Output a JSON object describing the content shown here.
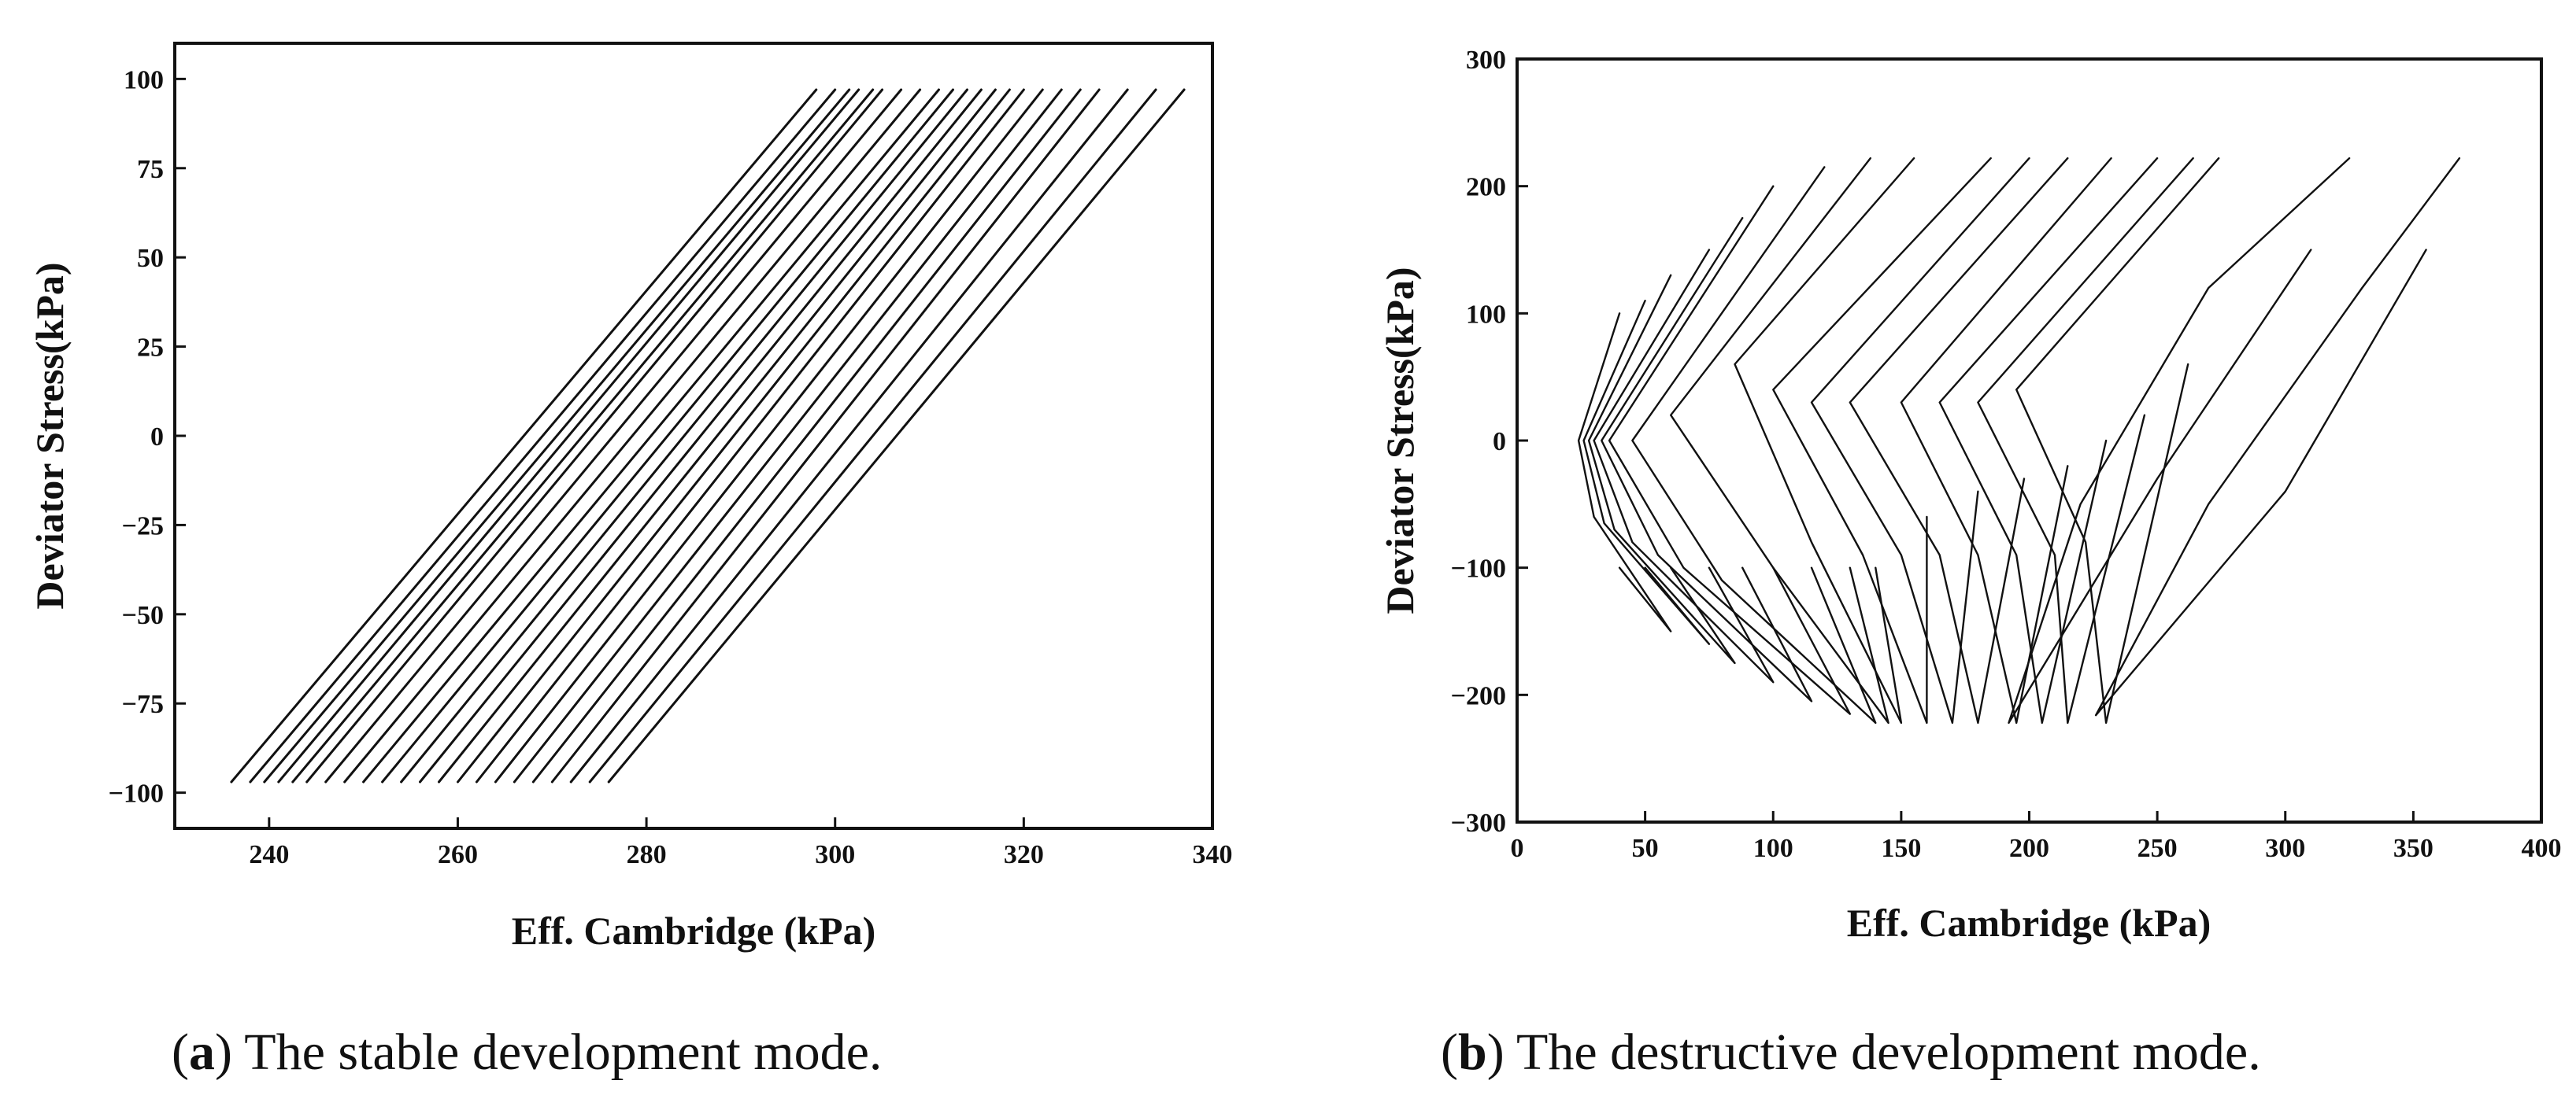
{
  "chart_data": [
    {
      "type": "line",
      "caption_letter": "a",
      "caption_text": "The stable development mode.",
      "xlabel": "Eff. Cambridge (kPa)",
      "ylabel": "Deviator Stress(kPa)",
      "xlim": [
        230,
        340
      ],
      "ylim": [
        -110,
        110
      ],
      "xticks": [
        240,
        260,
        280,
        300,
        320,
        340
      ],
      "yticks": [
        100,
        75,
        50,
        25,
        0,
        -25,
        -50,
        -75,
        -100
      ],
      "grid": false,
      "series": [
        {
          "color": "#111111",
          "x": [
            236.0,
            298.0
          ],
          "y": [
            -97,
            97
          ]
        },
        {
          "color": "#111111",
          "x": [
            238.0,
            300.0
          ],
          "y": [
            -97,
            97
          ]
        },
        {
          "color": "#111111",
          "x": [
            239.5,
            301.5
          ],
          "y": [
            -97,
            97
          ]
        },
        {
          "color": "#111111",
          "x": [
            241.0,
            302.5
          ],
          "y": [
            -97,
            97
          ]
        },
        {
          "color": "#111111",
          "x": [
            242.5,
            304.0
          ],
          "y": [
            -97,
            97
          ]
        },
        {
          "color": "#111111",
          "x": [
            244.0,
            305.0
          ],
          "y": [
            -97,
            97
          ]
        },
        {
          "color": "#111111",
          "x": [
            246.0,
            307.0
          ],
          "y": [
            -97,
            97
          ]
        },
        {
          "color": "#111111",
          "x": [
            248.0,
            309.0
          ],
          "y": [
            -97,
            97
          ]
        },
        {
          "color": "#111111",
          "x": [
            250.0,
            311.0
          ],
          "y": [
            -97,
            97
          ]
        },
        {
          "color": "#111111",
          "x": [
            252.0,
            312.5
          ],
          "y": [
            -97,
            97
          ]
        },
        {
          "color": "#111111",
          "x": [
            254.0,
            314.0
          ],
          "y": [
            -97,
            97
          ]
        },
        {
          "color": "#111111",
          "x": [
            256.0,
            315.5
          ],
          "y": [
            -97,
            97
          ]
        },
        {
          "color": "#111111",
          "x": [
            258.0,
            317.0
          ],
          "y": [
            -97,
            97
          ]
        },
        {
          "color": "#111111",
          "x": [
            260.0,
            318.5
          ],
          "y": [
            -97,
            97
          ]
        },
        {
          "color": "#111111",
          "x": [
            262.0,
            320.0
          ],
          "y": [
            -97,
            97
          ]
        },
        {
          "color": "#111111",
          "x": [
            264.0,
            322.0
          ],
          "y": [
            -97,
            97
          ]
        },
        {
          "color": "#111111",
          "x": [
            266.0,
            324.0
          ],
          "y": [
            -97,
            97
          ]
        },
        {
          "color": "#111111",
          "x": [
            268.0,
            326.0
          ],
          "y": [
            -97,
            97
          ]
        },
        {
          "color": "#111111",
          "x": [
            270.0,
            328.0
          ],
          "y": [
            -97,
            97
          ]
        },
        {
          "color": "#111111",
          "x": [
            272.0,
            331.0
          ],
          "y": [
            -97,
            97
          ]
        },
        {
          "color": "#111111",
          "x": [
            274.0,
            334.0
          ],
          "y": [
            -97,
            97
          ]
        },
        {
          "color": "#111111",
          "x": [
            276.0,
            337.0
          ],
          "y": [
            -97,
            97
          ]
        }
      ]
    },
    {
      "type": "line",
      "caption_letter": "b",
      "caption_text": "The destructive development mode.",
      "xlabel": "Eff. Cambridge (kPa)",
      "ylabel": "Deviator Stress(kPa)",
      "xlim": [
        0,
        400
      ],
      "ylim": [
        -300,
        300
      ],
      "xticks": [
        0,
        50,
        100,
        150,
        200,
        250,
        300,
        350,
        400
      ],
      "yticks": [
        300,
        200,
        100,
        0,
        -100,
        -200,
        -300
      ],
      "grid": false,
      "series": [
        {
          "color": "#111111",
          "x": [
            40,
            24,
            30,
            60,
            40
          ],
          "y": [
            100,
            0,
            -60,
            -150,
            -100
          ]
        },
        {
          "color": "#111111",
          "x": [
            50,
            26,
            34,
            75,
            50
          ],
          "y": [
            110,
            0,
            -65,
            -160,
            -100
          ]
        },
        {
          "color": "#111111",
          "x": [
            60,
            28,
            38,
            85,
            60
          ],
          "y": [
            130,
            0,
            -70,
            -175,
            -100
          ]
        },
        {
          "color": "#111111",
          "x": [
            75,
            30,
            45,
            100,
            75
          ],
          "y": [
            150,
            0,
            -80,
            -190,
            -100
          ]
        },
        {
          "color": "#111111",
          "x": [
            88,
            33,
            55,
            115,
            88
          ],
          "y": [
            175,
            0,
            -90,
            -205,
            -100
          ]
        },
        {
          "color": "#111111",
          "x": [
            100,
            36,
            65,
            130,
            100
          ],
          "y": [
            200,
            0,
            -100,
            -215,
            -100
          ]
        },
        {
          "color": "#111111",
          "x": [
            120,
            45,
            80,
            140,
            115
          ],
          "y": [
            215,
            0,
            -110,
            -222,
            -100
          ]
        },
        {
          "color": "#111111",
          "x": [
            138,
            60,
            100,
            145,
            130
          ],
          "y": [
            222,
            20,
            -100,
            -222,
            -100
          ]
        },
        {
          "color": "#111111",
          "x": [
            155,
            85,
            115,
            150,
            140
          ],
          "y": [
            222,
            60,
            -80,
            -222,
            -100
          ]
        },
        {
          "color": "#111111",
          "x": [
            185,
            100,
            135,
            160,
            160
          ],
          "y": [
            222,
            40,
            -90,
            -222,
            -60
          ]
        },
        {
          "color": "#111111",
          "x": [
            200,
            115,
            150,
            170,
            180
          ],
          "y": [
            222,
            30,
            -90,
            -222,
            -40
          ]
        },
        {
          "color": "#111111",
          "x": [
            215,
            130,
            165,
            180,
            198
          ],
          "y": [
            222,
            30,
            -90,
            -222,
            -30
          ]
        },
        {
          "color": "#111111",
          "x": [
            232,
            150,
            180,
            195,
            215
          ],
          "y": [
            222,
            30,
            -90,
            -222,
            -20
          ]
        },
        {
          "color": "#111111",
          "x": [
            250,
            165,
            195,
            205,
            230
          ],
          "y": [
            222,
            30,
            -90,
            -222,
            0
          ]
        },
        {
          "color": "#111111",
          "x": [
            264,
            180,
            210,
            215,
            245
          ],
          "y": [
            222,
            30,
            -90,
            -222,
            20
          ]
        },
        {
          "color": "#111111",
          "x": [
            274,
            195,
            222,
            230,
            262
          ],
          "y": [
            222,
            40,
            -80,
            -222,
            60
          ]
        },
        {
          "color": "#111111",
          "x": [
            325,
            270,
            220,
            192,
            250,
            310
          ],
          "y": [
            222,
            120,
            -50,
            -222,
            -30,
            150
          ]
        },
        {
          "color": "#111111",
          "x": [
            368,
            330,
            270,
            226,
            300,
            355
          ],
          "y": [
            222,
            120,
            -50,
            -216,
            -40,
            150
          ]
        }
      ]
    }
  ]
}
